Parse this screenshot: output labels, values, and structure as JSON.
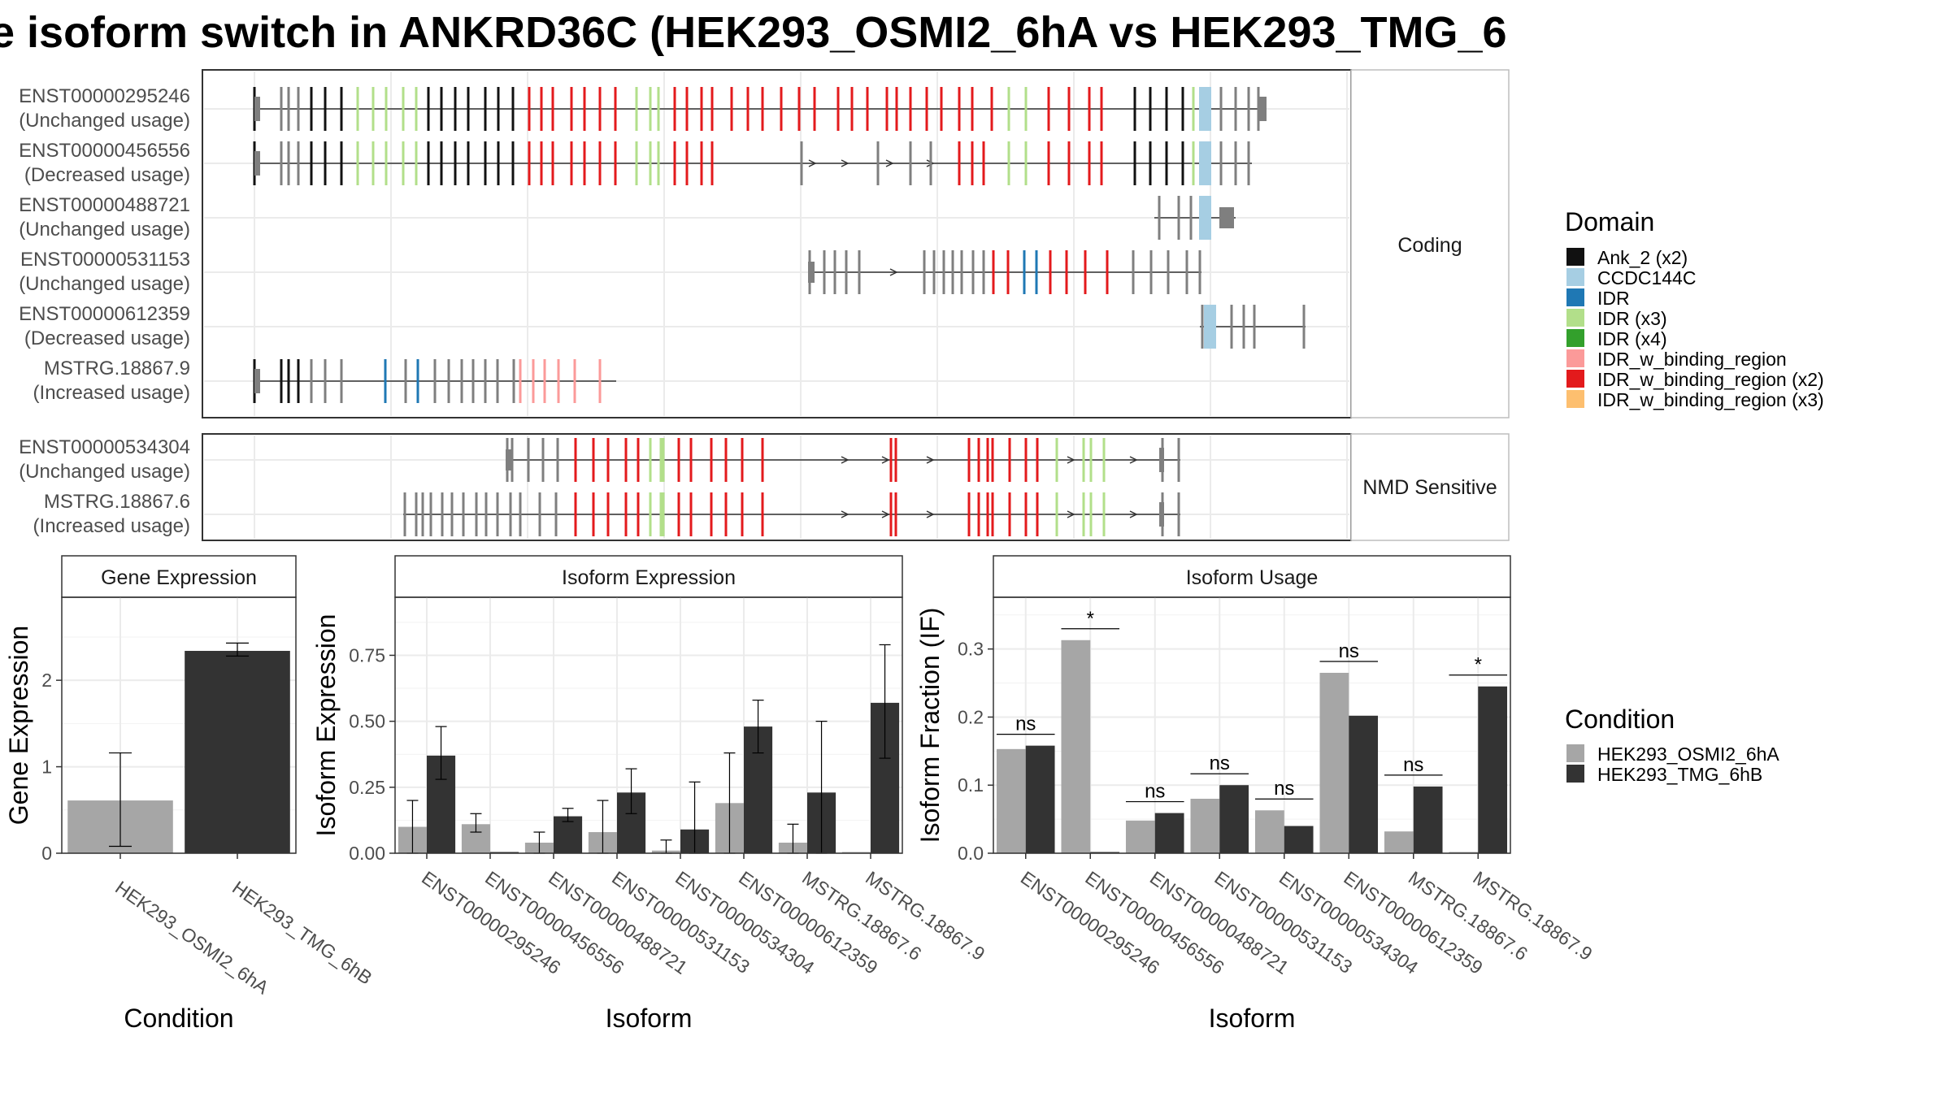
{
  "title": "e isoform switch in ANKRD36C (HEK293_OSMI2_6hA vs HEK293_TMG_6",
  "colors": {
    "cond1": "#a6a6a6",
    "cond2": "#333333",
    "grid": "#ebebeb",
    "exon": "#7f7f7f"
  },
  "structure": {
    "facets": [
      "Coding",
      "NMD Sensitive"
    ],
    "coding": [
      {
        "id": "ENST00000295246",
        "usage": "(Unchanged usage)"
      },
      {
        "id": "ENST00000456556",
        "usage": "(Decreased usage)"
      },
      {
        "id": "ENST00000488721",
        "usage": "(Unchanged usage)"
      },
      {
        "id": "ENST00000531153",
        "usage": "(Unchanged usage)"
      },
      {
        "id": "ENST00000612359",
        "usage": "(Decreased usage)"
      },
      {
        "id": "MSTRG.18867.9",
        "usage": "(Increased usage)"
      }
    ],
    "nmd": [
      {
        "id": "ENST00000534304",
        "usage": "(Unchanged usage)"
      },
      {
        "id": "MSTRG.18867.6",
        "usage": "(Increased usage)"
      }
    ]
  },
  "legend_domain": {
    "title": "Domain",
    "items": [
      {
        "label": "Ank_2 (x2)",
        "color": "#111111"
      },
      {
        "label": "CCDC144C",
        "color": "#a6cee3"
      },
      {
        "label": "IDR",
        "color": "#1f78b4"
      },
      {
        "label": "IDR (x3)",
        "color": "#b2df8a"
      },
      {
        "label": "IDR (x4)",
        "color": "#33a02c"
      },
      {
        "label": "IDR_w_binding_region",
        "color": "#fb9a99"
      },
      {
        "label": "IDR_w_binding_region (x2)",
        "color": "#e31a1c"
      },
      {
        "label": "IDR_w_binding_region (x3)",
        "color": "#fdbf6f"
      }
    ]
  },
  "legend_condition": {
    "title": "Condition",
    "items": [
      {
        "label": "HEK293_OSMI2_6hA",
        "color": "#a6a6a6"
      },
      {
        "label": "HEK293_TMG_6hB",
        "color": "#333333"
      }
    ]
  },
  "chart_data": [
    {
      "type": "bar",
      "title": "Gene Expression",
      "xlabel": "Condition",
      "ylabel": "Gene Expression",
      "categories": [
        "HEK293_OSMI2_6hA",
        "HEK293_TMG_6hB"
      ],
      "values": [
        0.61,
        2.34
      ],
      "error_low": [
        0.08,
        2.28
      ],
      "error_high": [
        1.16,
        2.43
      ],
      "ylim": [
        0,
        2.96
      ],
      "yticks": [
        0,
        1,
        2
      ],
      "yticklabels": [
        "0",
        "1",
        "2"
      ],
      "grid": true
    },
    {
      "type": "bar",
      "title": "Isoform Expression",
      "xlabel": "Isoform",
      "ylabel": "Isoform Expression",
      "categories": [
        "ENST00000295246",
        "ENST00000456556",
        "ENST00000488721",
        "ENST00000531153",
        "ENST00000534304",
        "ENST00000612359",
        "MSTRG.18867.6",
        "MSTRG.18867.9"
      ],
      "series": [
        {
          "name": "HEK293_OSMI2_6hA",
          "values": [
            0.1,
            0.11,
            0.04,
            0.08,
            0.01,
            0.19,
            0.04,
            0.0
          ],
          "error_low": [
            0.0,
            0.08,
            0.0,
            0.0,
            0.0,
            0.0,
            0.0,
            0.0
          ],
          "error_high": [
            0.2,
            0.15,
            0.08,
            0.2,
            0.05,
            0.38,
            0.11,
            0.0
          ]
        },
        {
          "name": "HEK293_TMG_6hB",
          "values": [
            0.37,
            0.0,
            0.14,
            0.23,
            0.09,
            0.48,
            0.23,
            0.57
          ],
          "error_low": [
            0.28,
            0.0,
            0.12,
            0.15,
            0.0,
            0.38,
            0.0,
            0.36
          ],
          "error_high": [
            0.48,
            0.0,
            0.17,
            0.32,
            0.27,
            0.58,
            0.5,
            0.79
          ]
        }
      ],
      "ylim": [
        0,
        0.97
      ],
      "yticks": [
        0,
        0.25,
        0.5,
        0.75
      ],
      "yticklabels": [
        "0.00",
        "0.25",
        "0.50",
        "0.75"
      ],
      "grid": true
    },
    {
      "type": "bar",
      "title": "Isoform Usage",
      "xlabel": "Isoform",
      "ylabel": "Isoform Fraction (IF)",
      "categories": [
        "ENST00000295246",
        "ENST00000456556",
        "ENST00000488721",
        "ENST00000531153",
        "ENST00000534304",
        "ENST00000612359",
        "MSTRG.18867.6",
        "MSTRG.18867.9"
      ],
      "series": [
        {
          "name": "HEK293_OSMI2_6hA",
          "values": [
            0.153,
            0.313,
            0.048,
            0.08,
            0.063,
            0.265,
            0.032,
            0.0
          ]
        },
        {
          "name": "HEK293_TMG_6hB",
          "values": [
            0.158,
            0.0,
            0.059,
            0.1,
            0.04,
            0.202,
            0.098,
            0.245
          ]
        }
      ],
      "significance": [
        "ns",
        "*",
        "ns",
        "ns",
        "ns",
        "ns",
        "ns",
        "*"
      ],
      "ylim": [
        0,
        0.376
      ],
      "yticks": [
        0,
        0.1,
        0.2,
        0.3
      ],
      "yticklabels": [
        "0.0",
        "0.1",
        "0.2",
        "0.3"
      ],
      "grid": true
    }
  ]
}
